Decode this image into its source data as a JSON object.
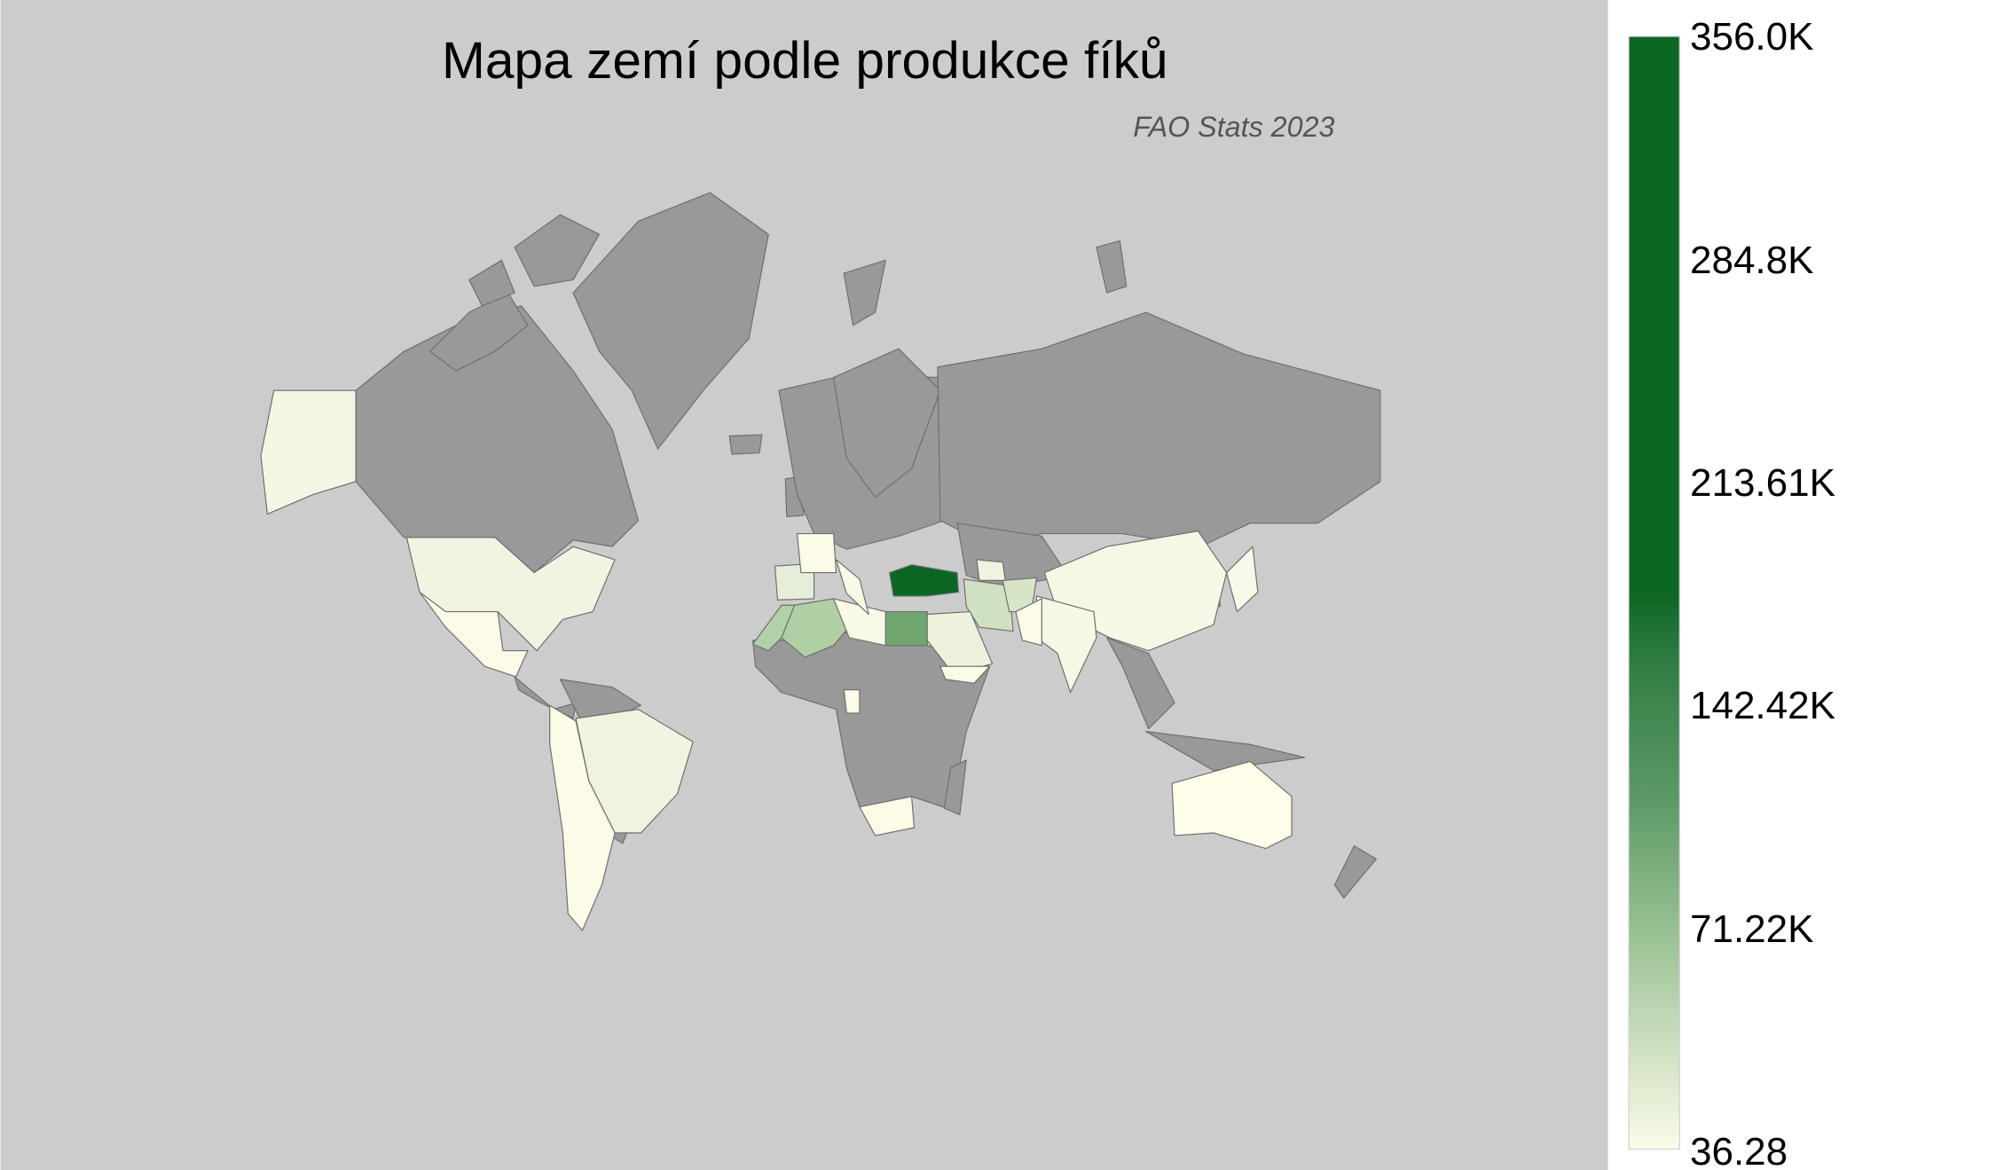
{
  "title": "Mapa zemí podle produkce fíků",
  "subtitle": "FAO Stats 2023",
  "colors": {
    "ocean": "#cccccc",
    "no_data": "#999999",
    "border": "#6e6e6e",
    "scale_low": "#fbfbe8",
    "scale_high": "#0c6624"
  },
  "colorbar": {
    "min": 36.28,
    "max": 356000,
    "ticks": [
      "356.0K",
      "284.8K",
      "213.61K",
      "142.42K",
      "71.22K",
      "36.28"
    ]
  },
  "countries": [
    {
      "name": "Turkey",
      "fill": "#0c6624"
    },
    {
      "name": "Egypt",
      "fill": "#6fa66f"
    },
    {
      "name": "Algeria",
      "fill": "#b0cfa5"
    },
    {
      "name": "Morocco",
      "fill": "#b3d1a8"
    },
    {
      "name": "Iran",
      "fill": "#d0e0c2"
    },
    {
      "name": "Afghanistan",
      "fill": "#d6e5c8"
    },
    {
      "name": "Spain",
      "fill": "#e6eed9"
    },
    {
      "name": "Saudi Arabia",
      "fill": "#eef2dc"
    },
    {
      "name": "United States",
      "fill": "#f0f4e0"
    },
    {
      "name": "Brazil",
      "fill": "#eff3df"
    },
    {
      "name": "Uzbekistan",
      "fill": "#eff3df"
    },
    {
      "name": "China",
      "fill": "#f6f8e6"
    },
    {
      "name": "India",
      "fill": "#f6f8e6"
    },
    {
      "name": "Japan",
      "fill": "#f8f9e8"
    },
    {
      "name": "Alaska",
      "fill": "#f3f6e2"
    },
    {
      "name": "Mexico",
      "fill": "#fbfbe8"
    },
    {
      "name": "Andes",
      "fill": "#fbfbe8"
    },
    {
      "name": "Libya",
      "fill": "#f8f9e6"
    },
    {
      "name": "France",
      "fill": "#fbfbe8"
    },
    {
      "name": "Italy",
      "fill": "#f8f9e6"
    },
    {
      "name": "Pakistan",
      "fill": "#fbfbe8"
    },
    {
      "name": "Yemen",
      "fill": "#fbfbe8"
    },
    {
      "name": "Cameroon",
      "fill": "#fbfbe8"
    },
    {
      "name": "South Africa",
      "fill": "#fbfbe8"
    },
    {
      "name": "Australia",
      "fill": "#fdfde9"
    }
  ]
}
